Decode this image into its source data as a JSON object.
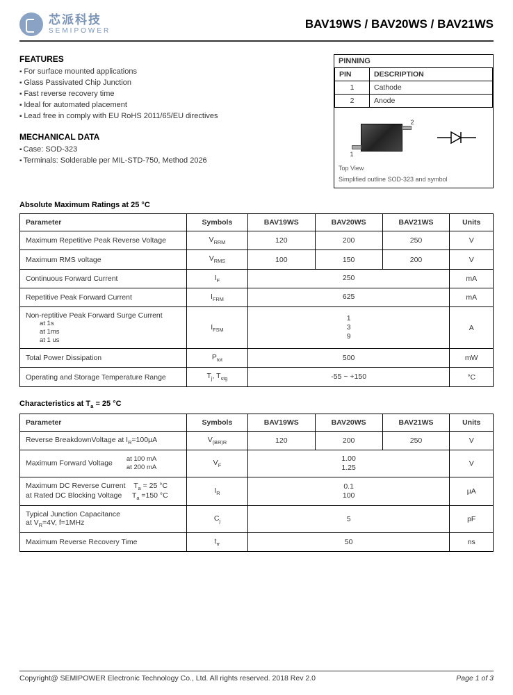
{
  "logo": {
    "cn": "芯派科技",
    "en": "SEMIPOWER"
  },
  "partTitle": "BAV19WS / BAV20WS / BAV21WS",
  "features": {
    "title": "FEATURES",
    "items": [
      "For surface mounted applications",
      "Glass Passivated Chip Junction",
      "Fast reverse recovery time",
      "Ideal for automated placement",
      "Lead free in comply with EU RoHS 2011/65/EU directives"
    ]
  },
  "mechanical": {
    "title": "MECHANICAL DATA",
    "items": [
      "Case: SOD-323",
      "Terminals: Solderable per MIL-STD-750, Method 2026"
    ]
  },
  "pinning": {
    "title": "PINNING",
    "header": [
      "PIN",
      "DESCRIPTION"
    ],
    "rows": [
      {
        "pin": "1",
        "desc": "Cathode"
      },
      {
        "pin": "2",
        "desc": "Anode"
      }
    ],
    "caption1": "Top View",
    "caption2": "Simplified outline SOD-323 and symbol"
  },
  "absMax": {
    "title": "Absolute Maximum Ratings at 25 °C",
    "headers": [
      "Parameter",
      "Symbols",
      "BAV19WS",
      "BAV20WS",
      "BAV21WS",
      "Units"
    ],
    "rows": [
      {
        "param": "Maximum Repetitive Peak Reverse Voltage",
        "sym": "V<sub>RRM</sub>",
        "v1": "120",
        "v2": "200",
        "v3": "250",
        "unit": "V",
        "span": false
      },
      {
        "param": "Maximum RMS voltage",
        "sym": "V<sub>RMS</sub>",
        "v1": "100",
        "v2": "150",
        "v3": "200",
        "unit": "V",
        "span": false
      },
      {
        "param": "Continuous Forward  Current",
        "sym": "I<sub>F</sub>",
        "merged": "250",
        "unit": "mA",
        "span": true
      },
      {
        "param": "Repetitive Peak Forward Current",
        "sym": "I<sub>FRM</sub>",
        "merged": "625",
        "unit": "mA",
        "span": true
      },
      {
        "param": "Non-reptitive Peak Forward Surge Current",
        "cond": "at 1s<br>at 1ms<br>at 1 us",
        "sym": "I<sub>FSM</sub>",
        "merged": "1<br>3<br>9",
        "unit": "A",
        "span": true
      },
      {
        "param": "Total Power Dissipation",
        "sym": "P<sub>tot</sub>",
        "merged": "500",
        "unit": "mW",
        "span": true
      },
      {
        "param": "Operating and Storage Temperature Range",
        "sym": "T<sub>j</sub>, T<sub>stg</sub>",
        "merged": "-55 ~ +150",
        "unit": "°C",
        "span": true
      }
    ]
  },
  "chars": {
    "title": "Characteristics at  T<sub>a</sub> = 25 °C",
    "headers": [
      "Parameter",
      "Symbols",
      "BAV19WS",
      "BAV20WS",
      "BAV21WS",
      "Units"
    ],
    "rows": [
      {
        "param": "Reverse BreakdownVoltage at I<sub>R</sub>=100µA",
        "sym": "V<sub>(BR)R</sub>",
        "v1": "120",
        "v2": "200",
        "v3": "250",
        "unit": "V",
        "span": false
      },
      {
        "param": "Maximum Forward Voltage",
        "cond": "at 100 mA<br>at 200 mA",
        "sym": "V<sub>F</sub>",
        "merged": "1.00<br>1.25",
        "unit": "V",
        "span": true
      },
      {
        "param": "Maximum DC Reverse Current&nbsp;&nbsp;&nbsp;&nbsp;T<sub>a</sub> = 25 °C<br>at Rated DC Blocking Voltage&nbsp;&nbsp;&nbsp;&nbsp;&nbsp;T<sub>a</sub> =150 °C",
        "sym": "I<sub>R</sub>",
        "merged": "0.1<br>100",
        "unit": "µA",
        "span": true
      },
      {
        "param": "Typical Junction Capacitance<br>at V<sub>R</sub>=4V, f=1MHz",
        "sym": "C<sub>j</sub>",
        "merged": "5",
        "unit": "pF",
        "span": true
      },
      {
        "param": "Maximum Reverse Recovery Time",
        "sym": "t<sub>rr</sub>",
        "merged": "50",
        "unit": "ns",
        "span": true
      }
    ]
  },
  "footer": {
    "copyright": "Copyright@ SEMIPOWER Electronic Technology Co., Ltd.  All rights reserved.  2018  Rev  2.0",
    "page": "Page 1 of 3"
  }
}
